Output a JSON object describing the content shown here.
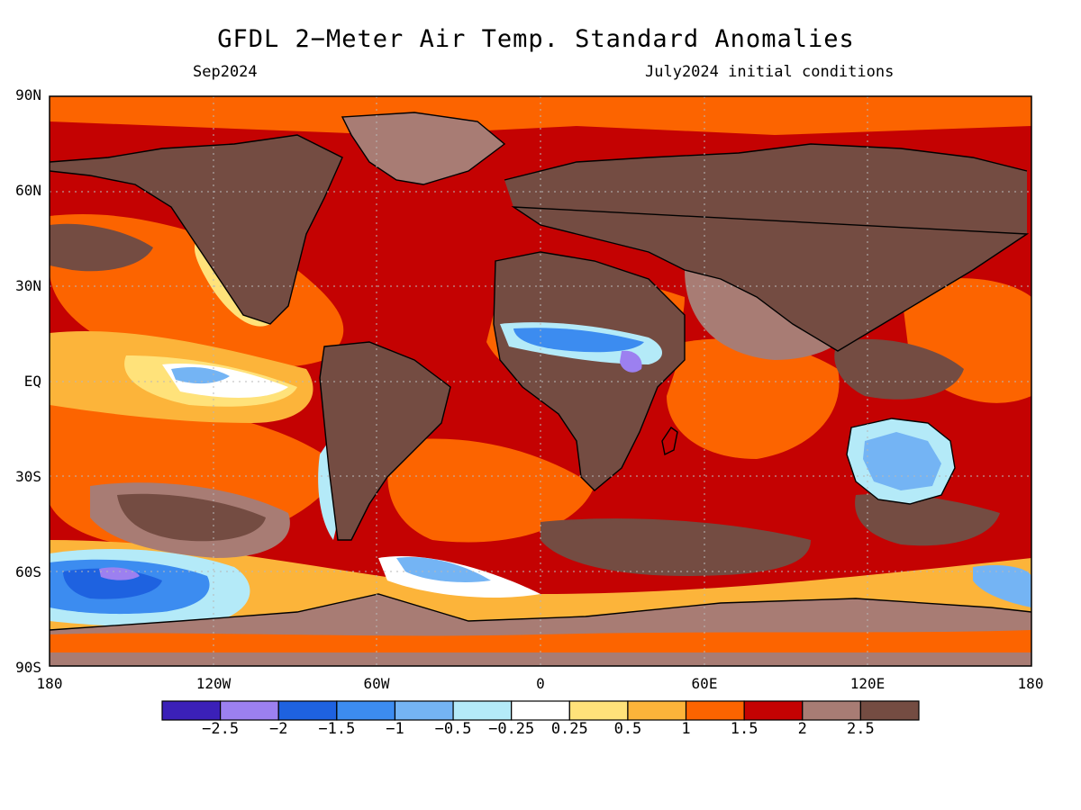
{
  "header": {
    "title": "GFDL 2−Meter Air Temp. Standard Anomalies",
    "valid_month": "Sep2024",
    "init_conditions": "July2024 initial conditions"
  },
  "axes": {
    "lat_labels": [
      "90N",
      "60N",
      "30N",
      "EQ",
      "30S",
      "60S",
      "90S"
    ],
    "lon_labels": [
      "180",
      "120W",
      "60W",
      "0",
      "60E",
      "120E",
      "180"
    ]
  },
  "colorbar": {
    "colors": [
      "#3b20b8",
      "#9c80f0",
      "#1e62e0",
      "#3c8cf0",
      "#74b4f4",
      "#b4eaf8",
      "#ffffff",
      "#ffe27a",
      "#fcb43a",
      "#fc6400",
      "#c40202",
      "#a87c74",
      "#744c42"
    ],
    "labels": [
      "−2.5",
      "−2",
      "−1.5",
      "−1",
      "−0.5",
      "−0.25",
      "0.25",
      "0.5",
      "1",
      "1.5",
      "2",
      "2.5"
    ]
  }
}
